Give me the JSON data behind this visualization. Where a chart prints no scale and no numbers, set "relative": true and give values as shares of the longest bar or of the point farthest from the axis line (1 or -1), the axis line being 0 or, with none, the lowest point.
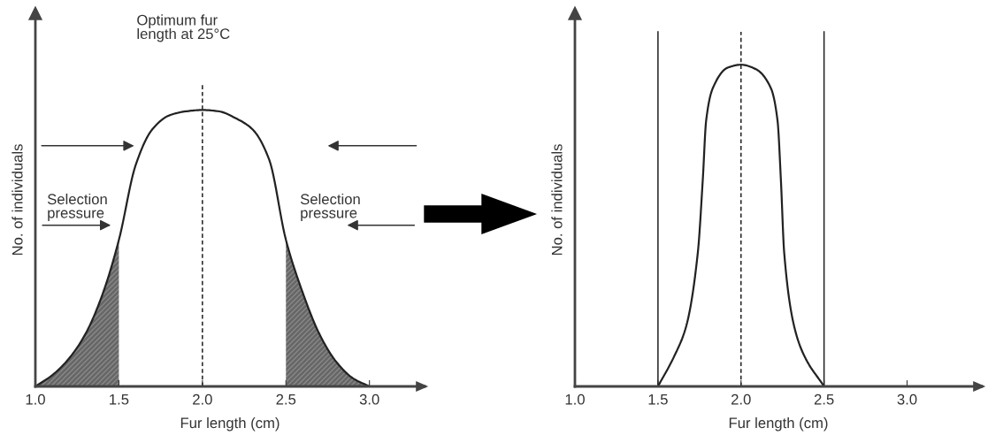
{
  "chart_data": [
    {
      "type": "line",
      "relative": true,
      "xlabel": "Fur length (cm)",
      "ylabel": "No. of individuals",
      "xlim": [
        1.0,
        3.33
      ],
      "xticks": [
        {
          "value": 1.0,
          "label": "1.0"
        },
        {
          "value": 1.5,
          "label": "1.5"
        },
        {
          "value": 2.0,
          "label": "2.0"
        },
        {
          "value": 2.5,
          "label": "2.5"
        },
        {
          "value": 3.0,
          "label": "3.0"
        }
      ],
      "annotations": [
        "Optimum fur\nlength at 25°C",
        "Selection\npressure",
        "Selection\npressure"
      ],
      "ref_lines": [
        {
          "axis": "x",
          "value": 2.0,
          "line_style": "dashed",
          "color": "#222222"
        }
      ],
      "series": [
        {
          "type": "area",
          "color": "#666666",
          "x": [
            1.0,
            1.1,
            1.2,
            1.3,
            1.4,
            1.5
          ],
          "values": [
            0,
            0.04,
            0.1,
            0.19,
            0.33,
            0.53
          ]
        },
        {
          "type": "area",
          "color": "#666666",
          "x": [
            2.5,
            2.6,
            2.7,
            2.8,
            2.9,
            3.0
          ],
          "values": [
            0.53,
            0.34,
            0.19,
            0.09,
            0.03,
            0
          ]
        },
        {
          "color": "#222222",
          "x": [
            1.0,
            1.1,
            1.2,
            1.3,
            1.4,
            1.5,
            1.6,
            1.7,
            1.8,
            1.9,
            2.0,
            2.1,
            2.2,
            2.3,
            2.4,
            2.5,
            2.6,
            2.7,
            2.8,
            2.9,
            3.0
          ],
          "values": [
            0,
            0.04,
            0.1,
            0.19,
            0.33,
            0.53,
            0.8,
            0.93,
            0.98,
            0.995,
            1.0,
            0.995,
            0.97,
            0.93,
            0.82,
            0.53,
            0.34,
            0.19,
            0.09,
            0.03,
            0
          ]
        }
      ]
    },
    {
      "type": "line",
      "relative": true,
      "xlabel": "Fur length (cm)",
      "ylabel": "No. of individuals",
      "xlim": [
        1.0,
        3.45
      ],
      "xticks": [
        {
          "value": 1.0,
          "label": "1.0"
        },
        {
          "value": 1.5,
          "label": "1.5"
        },
        {
          "value": 2.0,
          "label": "2.0"
        },
        {
          "value": 2.5,
          "label": "2.5"
        },
        {
          "value": 3.0,
          "label": "3.0"
        }
      ],
      "ref_lines": [
        {
          "axis": "x",
          "value": 1.5,
          "line_style": "solid",
          "color": "#222222"
        },
        {
          "axis": "x",
          "value": 2.0,
          "line_style": "dashed",
          "color": "#222222"
        },
        {
          "axis": "x",
          "value": 2.5,
          "line_style": "solid",
          "color": "#222222"
        }
      ],
      "series": [
        {
          "color": "#222222",
          "x": [
            1.5,
            1.6,
            1.67,
            1.74,
            1.77,
            1.79,
            1.83,
            1.92,
            2.0,
            2.09,
            2.18,
            2.22,
            2.24,
            2.26,
            2.32,
            2.38,
            2.5
          ],
          "values": [
            0,
            0.096,
            0.187,
            0.416,
            0.644,
            0.826,
            0.927,
            0.991,
            1.0,
            0.986,
            0.927,
            0.826,
            0.644,
            0.416,
            0.187,
            0.096,
            0
          ]
        }
      ]
    }
  ]
}
